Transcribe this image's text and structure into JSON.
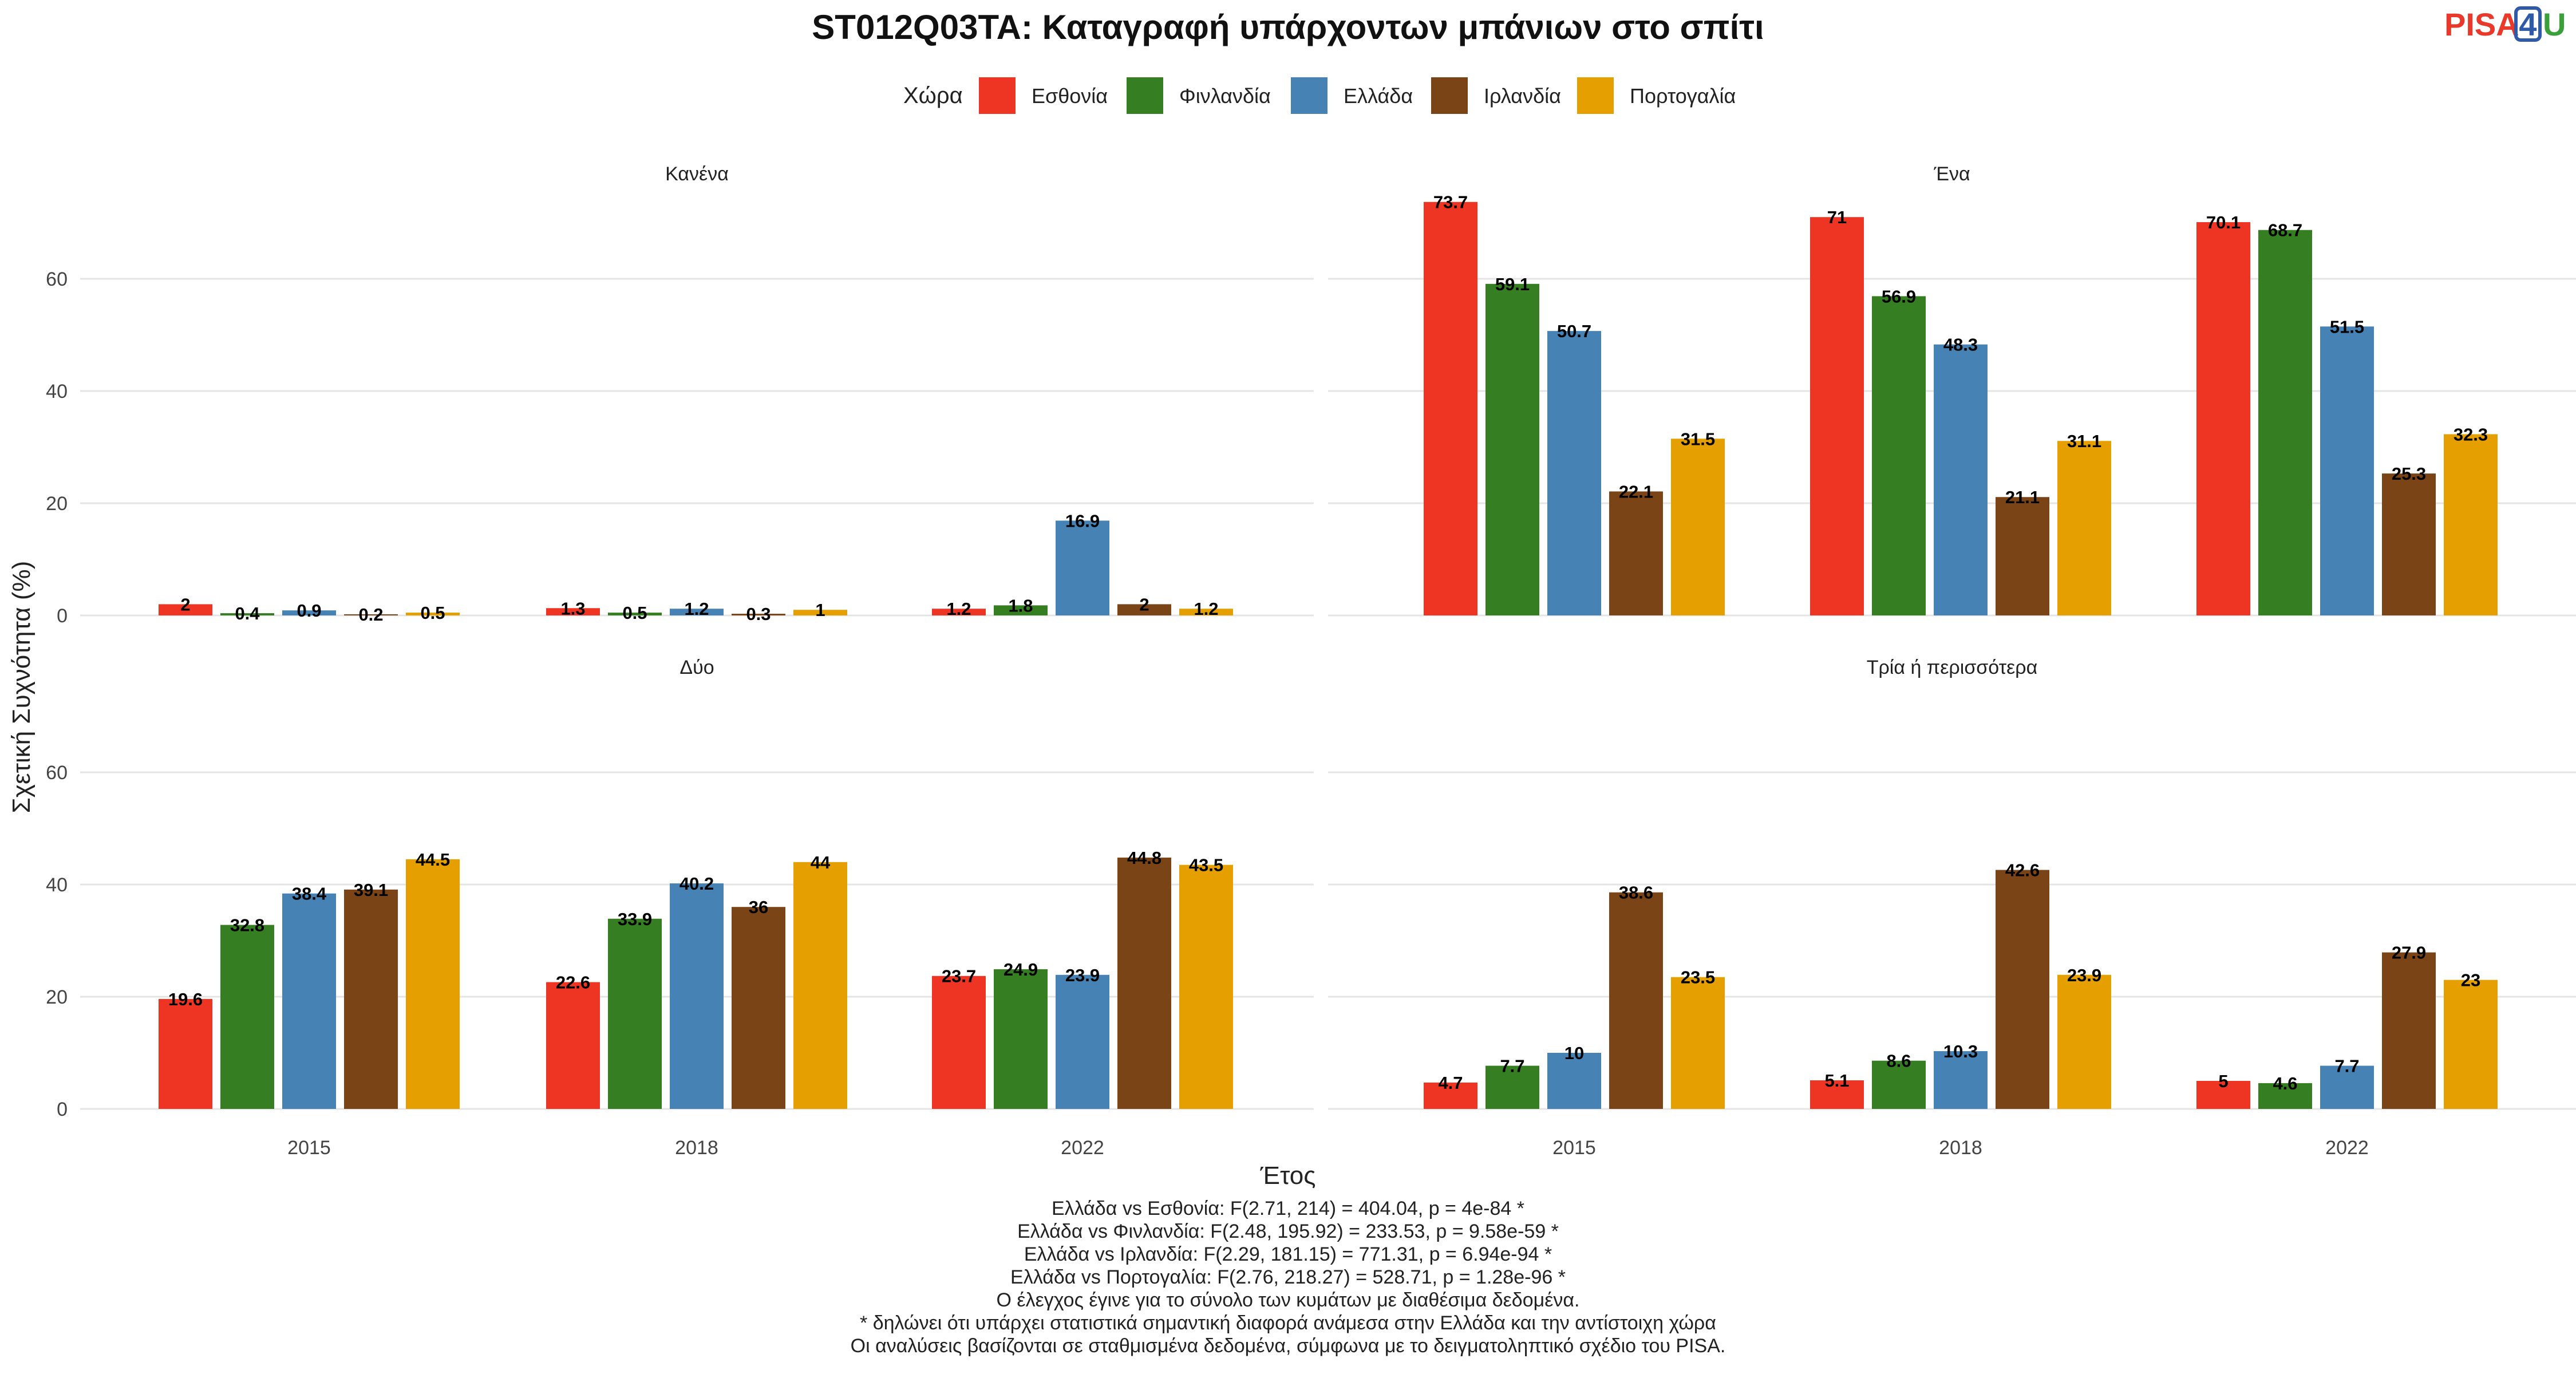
{
  "logo": {
    "text_left": "PISA",
    "text_box": "4",
    "text_right": "U",
    "color_left": "#e8392a",
    "color_box": "#2f5aa8",
    "color_right": "#3aa13a"
  },
  "chart_data": {
    "type": "bar",
    "title": "ST012Q03TA: Καταγραφή υπάρχοντων μπάνιων στο σπίτι",
    "xlabel": "Έτος",
    "ylabel": "Σχετική Συχνότητα (%)",
    "ylim": [
      0,
      75
    ],
    "yticks": [
      0,
      20,
      40,
      60
    ],
    "grid": true,
    "legend": {
      "title": "Χώρα",
      "position": "top"
    },
    "categories": [
      "2015",
      "2018",
      "2022"
    ],
    "series": [
      {
        "name": "Εσθονία",
        "color": "#ee3524"
      },
      {
        "name": "Φινλανδία",
        "color": "#357f22"
      },
      {
        "name": "Ελλάδα",
        "color": "#4682b4"
      },
      {
        "name": "Ιρλανδία",
        "color": "#7b4416"
      },
      {
        "name": "Πορτογαλία",
        "color": "#e5a000"
      }
    ],
    "panels": [
      {
        "label": "Κανένα",
        "values": [
          [
            2,
            0.4,
            0.9,
            0.2,
            0.5
          ],
          [
            1.3,
            0.5,
            1.2,
            0.3,
            1
          ],
          [
            1.2,
            1.8,
            16.9,
            2,
            1.2
          ]
        ]
      },
      {
        "label": "Ένα",
        "values": [
          [
            73.7,
            59.1,
            50.7,
            22.1,
            31.5
          ],
          [
            71,
            56.9,
            48.3,
            21.1,
            31.1
          ],
          [
            70.1,
            68.7,
            51.5,
            25.3,
            32.3
          ]
        ]
      },
      {
        "label": "Δύο",
        "values": [
          [
            19.6,
            32.8,
            38.4,
            39.1,
            44.5
          ],
          [
            22.6,
            33.9,
            40.2,
            36,
            44
          ],
          [
            23.7,
            24.9,
            23.9,
            44.8,
            43.5
          ]
        ]
      },
      {
        "label": "Τρία ή περισσότερα",
        "values": [
          [
            4.7,
            7.7,
            10,
            38.6,
            23.5
          ],
          [
            5.1,
            8.6,
            10.3,
            42.6,
            23.9
          ],
          [
            5,
            4.6,
            7.7,
            27.9,
            23
          ]
        ]
      }
    ],
    "caption": [
      "Ελλάδα vs Εσθονία: F(2.71, 214) = 404.04, p = 4e-84 *",
      "Ελλάδα vs Φινλανδία: F(2.48, 195.92) = 233.53, p = 9.58e-59 *",
      "Ελλάδα vs Ιρλανδία: F(2.29, 181.15) = 771.31, p = 6.94e-94 *",
      "Ελλάδα vs Πορτογαλία: F(2.76, 218.27) = 528.71, p = 1.28e-96 *",
      "Ο έλεγχος έγινε για το σύνολο των κυμάτων με διαθέσιμα δεδομένα.",
      "* δηλώνει ότι υπάρχει στατιστικά σημαντική διαφορά ανάμεσα στην Ελλάδα και την αντίστοιχη χώρα",
      "Οι αναλύσεις βασίζονται σε σταθμισμένα δεδομένα, σύμφωνα με το δειγματοληπτικό σχέδιο του PISA."
    ]
  }
}
